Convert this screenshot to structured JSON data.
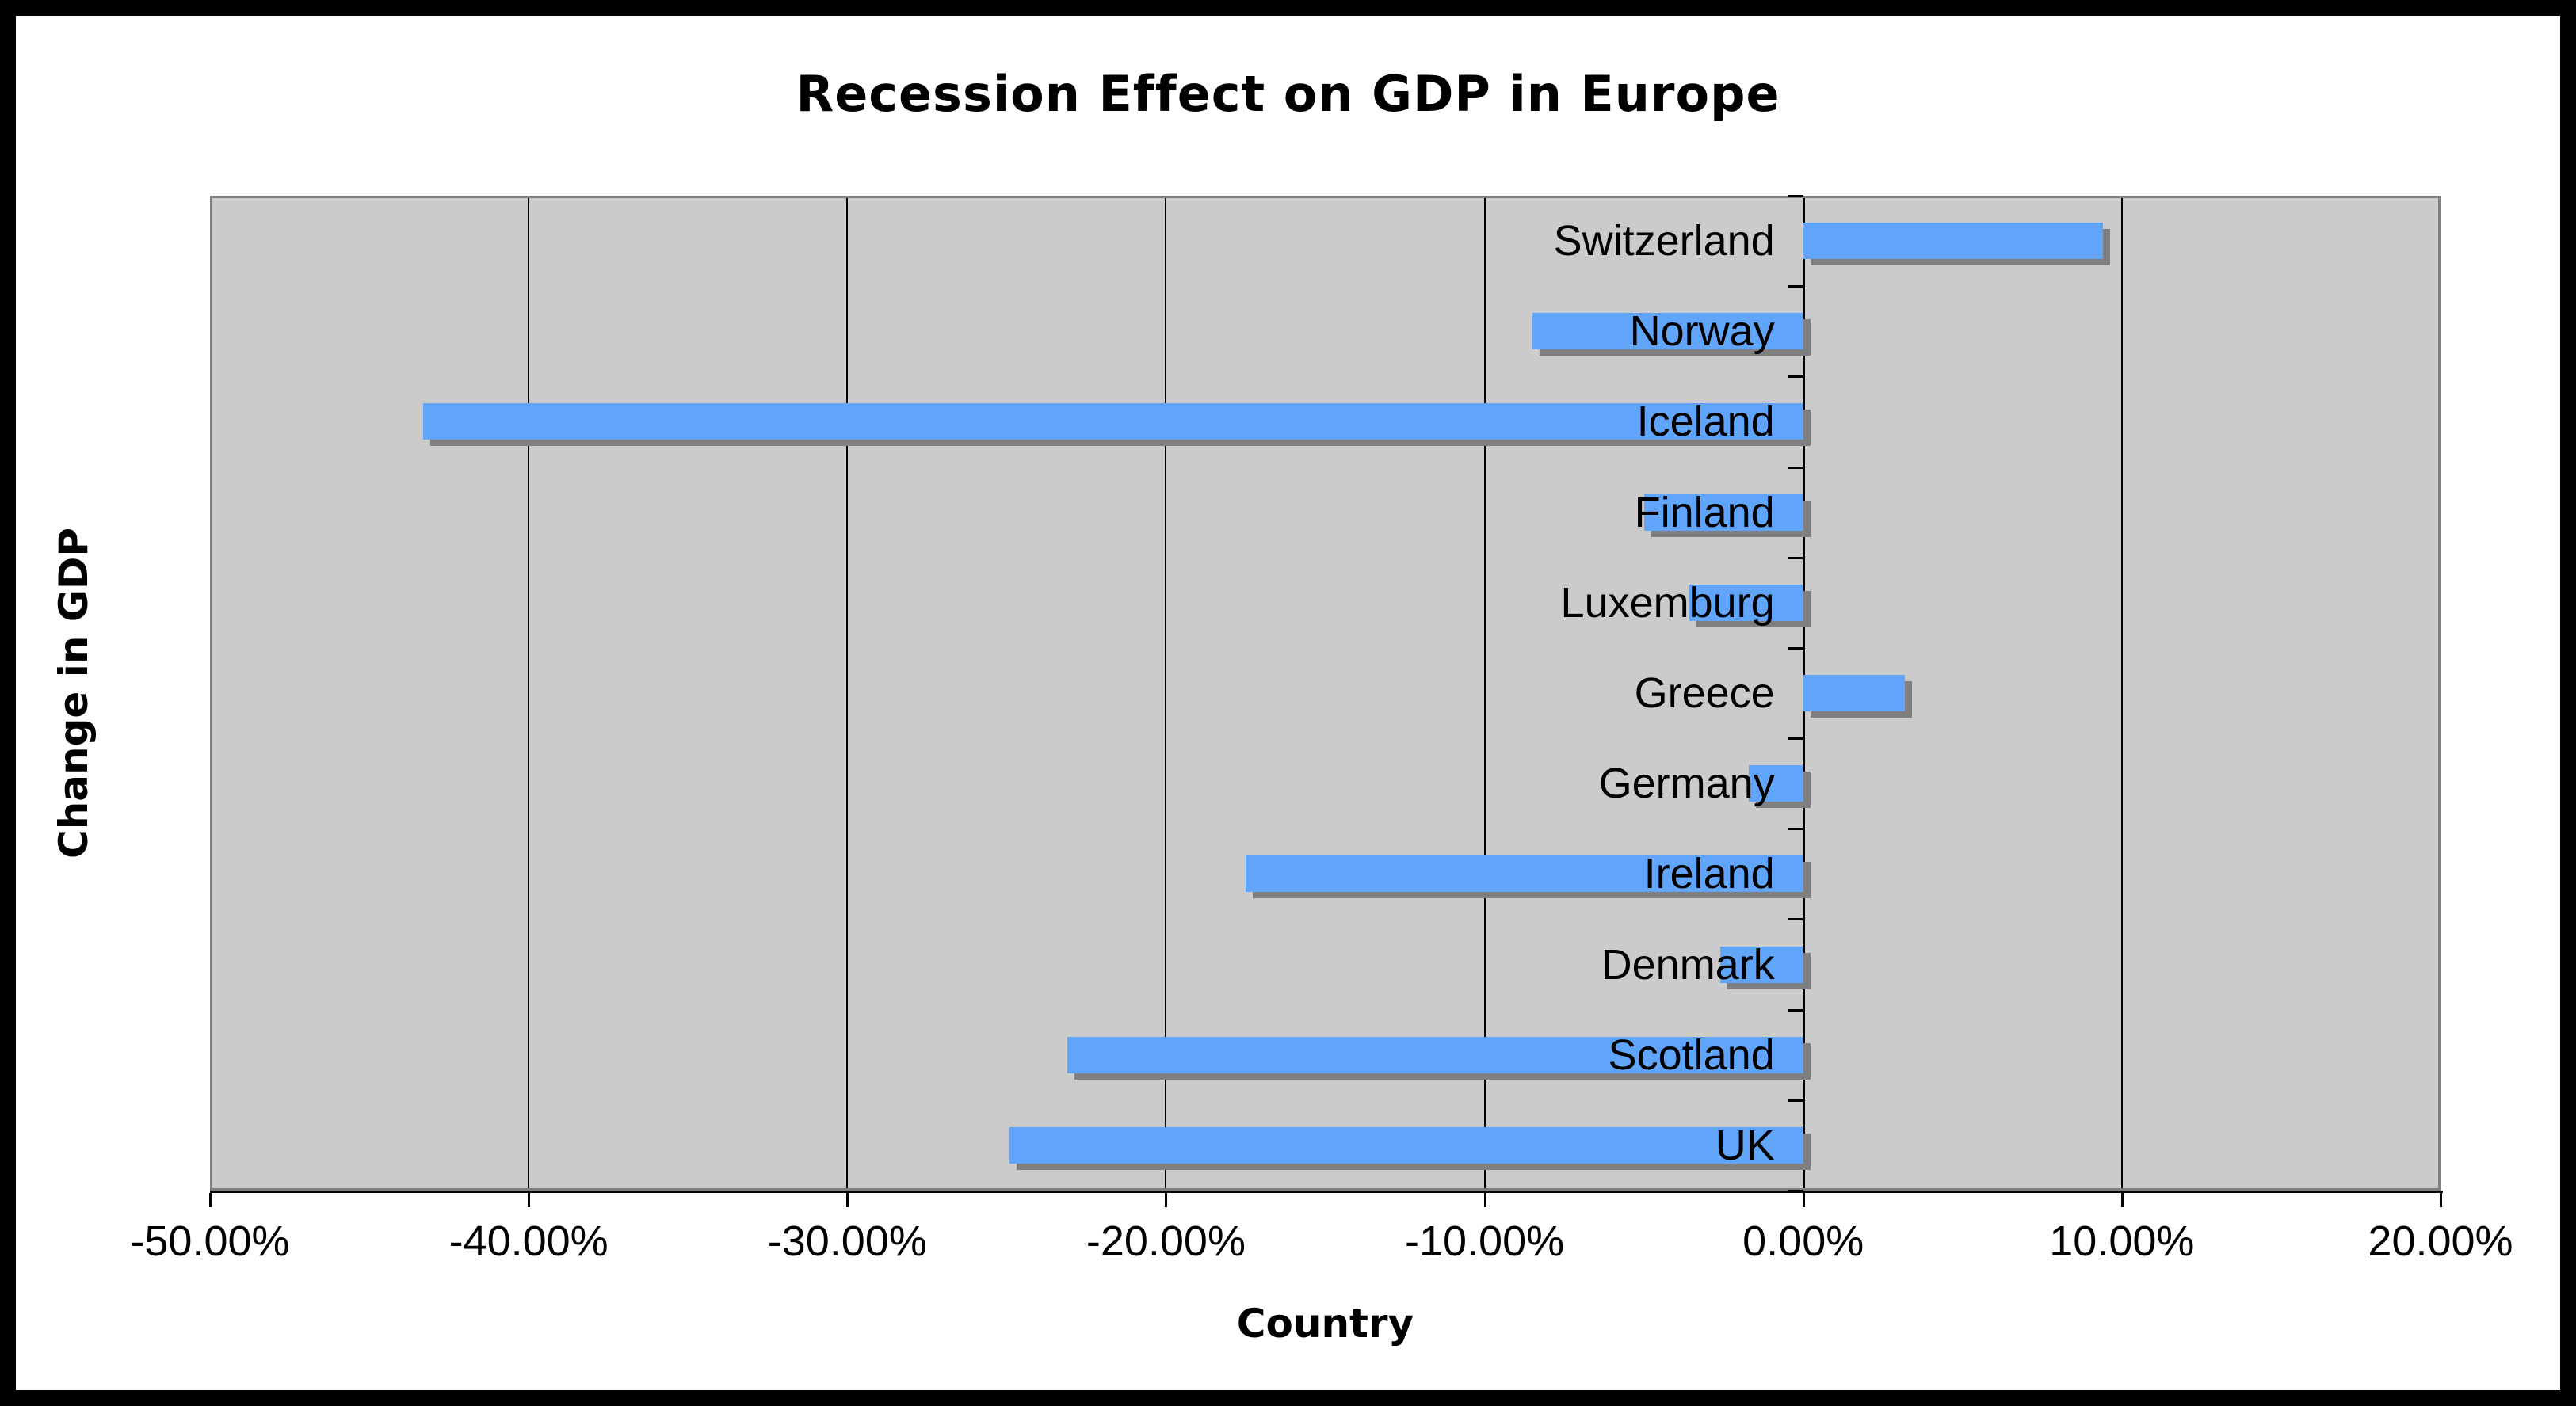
{
  "frame": {
    "border_color": "#000000",
    "background_color": "#ffffff"
  },
  "chart_data": {
    "type": "bar",
    "orientation": "horizontal",
    "title": "Recession Effect on GDP in Europe",
    "xlabel": "Country",
    "ylabel": "Change in GDP",
    "categories": [
      "Switzerland",
      "Norway",
      "Iceland",
      "Finland",
      "Luxemburg",
      "Greece",
      "Germany",
      "Ireland",
      "Denmark",
      "Scotland",
      "UK"
    ],
    "values": [
      9.4,
      -8.5,
      -43.3,
      -5.0,
      -3.6,
      3.2,
      -1.7,
      -17.5,
      -2.6,
      -23.1,
      -24.9
    ],
    "value_unit": "%",
    "value_axis": {
      "min": -50,
      "max": 20,
      "tick_step": 10,
      "tick_values": [
        -50,
        -40,
        -30,
        -20,
        -10,
        0,
        10,
        20
      ],
      "tick_labels": [
        "-50.00%",
        "-40.00%",
        "-30.00%",
        "-20.00%",
        "-10.00%",
        "0.00%",
        "10.00%",
        "20.00%"
      ]
    },
    "grid": true,
    "legend": false,
    "colors": {
      "bar": "#61a5fb",
      "bar_shadow": "#7f7f7f",
      "plot_background": "#cbcbcb",
      "plot_border": "#808080",
      "axis_line": "#000000",
      "gridline": "#000000",
      "text": "#000000"
    }
  }
}
